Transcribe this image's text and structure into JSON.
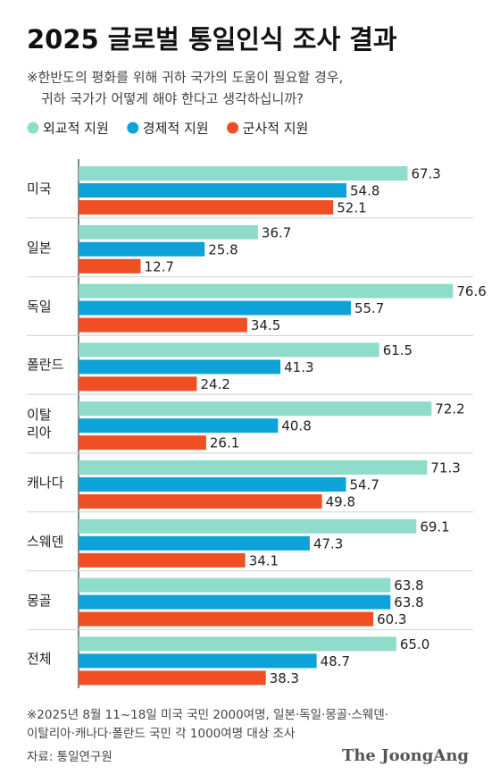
{
  "chart_data": {
    "type": "hbar",
    "title": "2025 글로벌 통일인식 조사 결과",
    "subtitle": [
      "※한반도의 평화를 위해 귀하 국가의 도움이 필요할 경우,",
      "귀하 국가가 어떻게 해야 한다고 생각하십니까?"
    ],
    "categories": [
      "미국",
      "일본",
      "독일",
      "폴란드",
      "이탈\n리아",
      "캐나다",
      "스웨덴",
      "몽골",
      "전체"
    ],
    "series": [
      {
        "name": "외교적 지원",
        "color": "#8fdccb",
        "values": [
          67.3,
          36.7,
          76.6,
          61.5,
          72.2,
          71.3,
          69.1,
          63.8,
          65.0
        ],
        "value_labels": [
          "67.3",
          "36.7",
          "76.6",
          "61.5",
          "72.2",
          "71.3",
          "69.1",
          "63.8",
          "65.0"
        ]
      },
      {
        "name": "경제적 지원",
        "color": "#0ea3d8",
        "values": [
          54.8,
          25.8,
          55.7,
          41.3,
          40.8,
          54.7,
          47.3,
          63.8,
          48.7
        ]
      },
      {
        "name": "군사적 지원",
        "color": "#f04e23",
        "values": [
          52.1,
          12.7,
          34.5,
          24.2,
          26.1,
          49.8,
          34.1,
          60.3,
          38.3
        ]
      }
    ],
    "xlim": [
      0,
      80
    ],
    "notes": [
      "※2025년 8월 11~18일 미국 국민 2000여명, 일본·독일·몽골·스웨덴·",
      "이탈리아·캐나다·폴란드 국민 각 1000여명 대상 조사"
    ],
    "source": "자료: 통일연구원",
    "brand": "The JoongAng"
  }
}
